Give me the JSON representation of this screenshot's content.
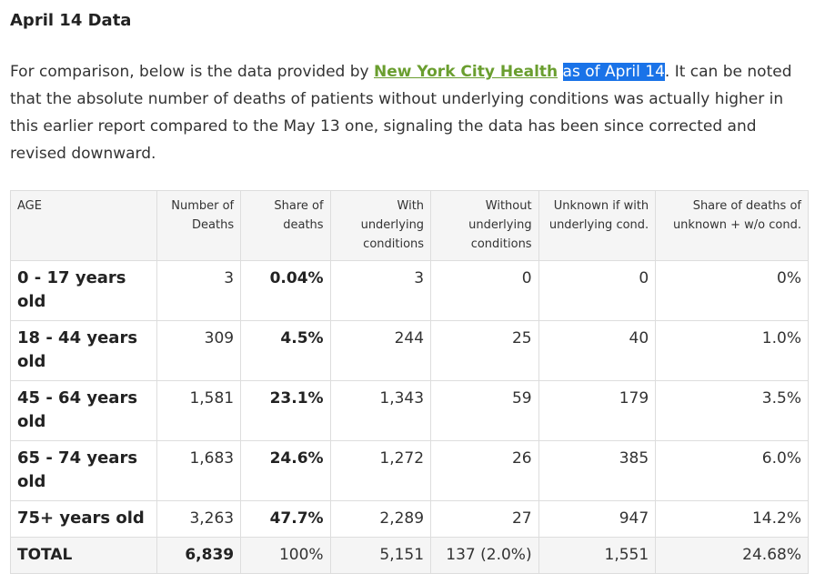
{
  "heading": "April 14 Data",
  "paragraph": {
    "before": "For comparison, below is the data provided by ",
    "link": "New York City Health",
    "space": " ",
    "highlight": "as of April 14",
    "after": ". It can be noted that the absolute number of deaths of patients without underlying conditions was actually higher in this earlier report compared to the May 13 one, signaling the data has been since corrected and revised downward."
  },
  "colors": {
    "link": "#6a9e2f",
    "highlight": "#1a73e8",
    "header_bg": "#f5f5f5",
    "border": "#dddddd"
  },
  "table": {
    "headers": [
      "AGE",
      "Number of Deaths",
      "Share of deaths",
      "With underlying conditions",
      "Without underlying conditions",
      "Unknown if with underlying cond.",
      "Share of deaths of unknown + w/o cond."
    ],
    "rows": [
      [
        "0 - 17 years old",
        "3",
        "0.04%",
        "3",
        "0",
        "0",
        "0%"
      ],
      [
        "18 - 44 years old",
        "309",
        "4.5%",
        "244",
        "25",
        "40",
        "1.0%"
      ],
      [
        "45 - 64 years old",
        "1,581",
        "23.1%",
        "1,343",
        "59",
        "179",
        "3.5%"
      ],
      [
        "65 - 74 years old",
        "1,683",
        "24.6%",
        "1,272",
        "26",
        "385",
        "6.0%"
      ],
      [
        "75+ years old",
        "3,263",
        "47.7%",
        "2,289",
        "27",
        "947",
        "14.2%"
      ],
      [
        "TOTAL",
        "6,839",
        "100%",
        "5,151",
        "137 (2.0%)",
        "1,551",
        "24.68%"
      ]
    ]
  }
}
